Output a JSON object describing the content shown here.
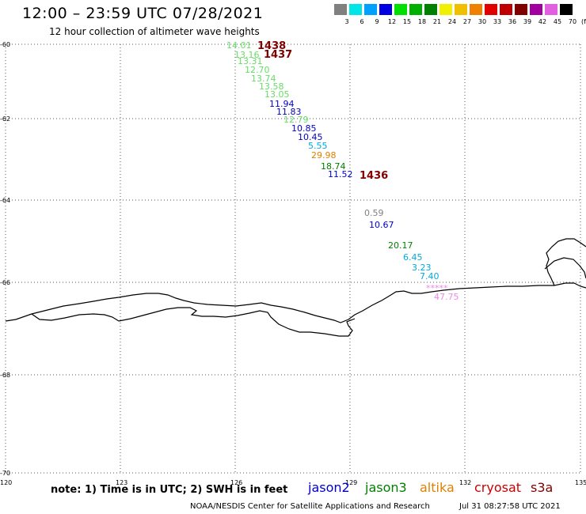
{
  "title": "12:00 – 23:59 UTC 07/28/2021",
  "subtitle": "12 hour collection of altimeter wave heights",
  "colorbar": {
    "labels": [
      "3",
      "6",
      "9",
      "12",
      "15",
      "18",
      "21",
      "24",
      "27",
      "30",
      "33",
      "36",
      "39",
      "42",
      "45",
      "70"
    ],
    "unit": "(ft)",
    "colors": [
      "#808080",
      "#00e6e6",
      "#00a0ff",
      "#0000e0",
      "#00e000",
      "#00b000",
      "#008000",
      "#f0f000",
      "#f0c000",
      "#f08000",
      "#e00000",
      "#c00000",
      "#800000",
      "#a000a0",
      "#e060e0",
      "#000000"
    ]
  },
  "axes": {
    "lat_labels": [
      "-60",
      "-62",
      "-64",
      "-66",
      "-68",
      "-70"
    ],
    "lon_labels": [
      "120",
      "123",
      "126",
      "129",
      "132",
      "135"
    ]
  },
  "observations": [
    {
      "value": "14.01",
      "color": "#66dd66"
    },
    {
      "value": "13.16",
      "color": "#66dd66"
    },
    {
      "value": "13.31",
      "color": "#66dd66"
    },
    {
      "value": "12.70",
      "color": "#66dd66"
    },
    {
      "value": "13.74",
      "color": "#66dd66"
    },
    {
      "value": "13.58",
      "color": "#66dd66"
    },
    {
      "value": "13.05",
      "color": "#66dd66"
    },
    {
      "value": "11.94",
      "color": "#0000cc"
    },
    {
      "value": "11.83",
      "color": "#0000cc"
    },
    {
      "value": "12.79",
      "color": "#66dd66"
    },
    {
      "value": "10.85",
      "color": "#0000cc"
    },
    {
      "value": "10.45",
      "color": "#0000cc"
    },
    {
      "value": "5.55",
      "color": "#00aadd"
    },
    {
      "value": "29.98",
      "color": "#e08000"
    },
    {
      "value": "18.74",
      "color": "#008000"
    },
    {
      "value": "11.52",
      "color": "#0000cc"
    },
    {
      "value": "0.59",
      "color": "#808080"
    },
    {
      "value": "10.67",
      "color": "#0000cc"
    },
    {
      "value": "20.17",
      "color": "#008000"
    },
    {
      "value": "6.45",
      "color": "#00aadd"
    },
    {
      "value": "3.23",
      "color": "#00aadd"
    },
    {
      "value": "7.40",
      "color": "#00aadd"
    },
    {
      "value": "*****",
      "color": "#ee88ee"
    },
    {
      "value": "47.75",
      "color": "#ee88ee"
    }
  ],
  "time_labels": [
    {
      "value": "1438",
      "color": "#800000"
    },
    {
      "value": "1437",
      "color": "#800000"
    },
    {
      "value": "1436",
      "color": "#800000"
    }
  ],
  "footer": {
    "note": "note: 1) Time is in UTC; 2) SWH is in feet",
    "satellites": [
      {
        "name": "jason2",
        "color": "#0000cc"
      },
      {
        "name": "jason3",
        "color": "#008000"
      },
      {
        "name": "altika",
        "color": "#e08000"
      },
      {
        "name": "cryosat",
        "color": "#cc0000"
      },
      {
        "name": "s3a",
        "color": "#800000"
      }
    ],
    "credit": "NOAA/NESDIS Center for Satellite Applications and Research",
    "timestamp": "Jul 31 08:27:58 UTC 2021"
  }
}
